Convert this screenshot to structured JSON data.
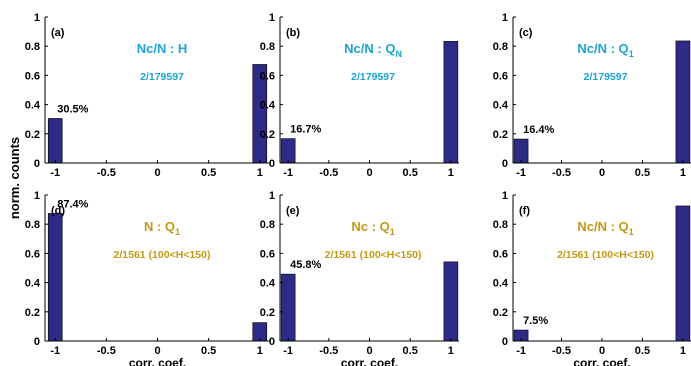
{
  "figure": {
    "ylabel_shared": "norm. counts"
  },
  "colors": {
    "bar": "#2e2b88",
    "axis": "#000000",
    "annot_cyan": "#1aa4d9",
    "annot_gold": "#c49a12"
  },
  "chart_data": [
    {
      "type": "bar",
      "panel": "(a)",
      "title": "Nc/N : H",
      "subtitle": "2/179597",
      "annotation_color": "cyan",
      "x": [
        -1,
        1
      ],
      "values": [
        0.305,
        0.675
      ],
      "bar_label": "30.5%",
      "xlim": [
        -1.1,
        1.1
      ],
      "ylim": [
        0,
        1
      ],
      "xticks": [
        "-1",
        "-0.5",
        "0",
        "0.5",
        "1"
      ],
      "yticks": [
        "0",
        "0.2",
        "0.4",
        "0.6",
        "0.8",
        "1"
      ],
      "xlabel": "",
      "ylabel": ""
    },
    {
      "type": "bar",
      "panel": "(b)",
      "title": "Nc/N : Q",
      "title_sub": "N",
      "subtitle": "2/179597",
      "annotation_color": "cyan",
      "x": [
        -1,
        1
      ],
      "values": [
        0.167,
        0.833
      ],
      "bar_label": "16.7%",
      "xlim": [
        -1.1,
        1.1
      ],
      "ylim": [
        0,
        1
      ],
      "xticks": [
        "-1",
        "-0.5",
        "0",
        "0.5",
        "1"
      ],
      "yticks": [
        "0",
        "0.2",
        "0.4",
        "0.6",
        "0.8",
        "1"
      ],
      "xlabel": "",
      "ylabel": ""
    },
    {
      "type": "bar",
      "panel": "(c)",
      "title": "Nc/N : Q",
      "title_sub": "1",
      "subtitle": "2/179597",
      "annotation_color": "cyan",
      "x": [
        -1,
        1
      ],
      "values": [
        0.164,
        0.836
      ],
      "bar_label": "16.4%",
      "xlim": [
        -1.1,
        1.1
      ],
      "ylim": [
        0,
        1
      ],
      "xticks": [
        "-1",
        "-0.5",
        "0",
        "0.5",
        "1"
      ],
      "yticks": [
        "0",
        "0.2",
        "0.4",
        "0.6",
        "0.8",
        "1"
      ],
      "xlabel": "",
      "ylabel": ""
    },
    {
      "type": "bar",
      "panel": "(d)",
      "title": "N : Q",
      "title_sub": "1",
      "subtitle": "2/1561 (100<H<150)",
      "annotation_color": "gold",
      "x": [
        -1,
        1
      ],
      "values": [
        0.874,
        0.126
      ],
      "bar_label": "87.4%",
      "xlim": [
        -1.1,
        1.1
      ],
      "ylim": [
        0,
        1
      ],
      "xticks": [
        "-1",
        "-0.5",
        "0",
        "0.5",
        "1"
      ],
      "yticks": [
        "0",
        "0.2",
        "0.4",
        "0.6",
        "0.8",
        "1"
      ],
      "xlabel": "corr. coef.",
      "ylabel": ""
    },
    {
      "type": "bar",
      "panel": "(e)",
      "title": "Nc : Q",
      "title_sub": "1",
      "subtitle": "2/1561 (100<H<150)",
      "annotation_color": "gold",
      "x": [
        -1,
        1
      ],
      "values": [
        0.458,
        0.542
      ],
      "bar_label": "45.8%",
      "xlim": [
        -1.1,
        1.1
      ],
      "ylim": [
        0,
        1
      ],
      "xticks": [
        "-1",
        "-0.5",
        "0",
        "0.5",
        "1"
      ],
      "yticks": [
        "0",
        "0.2",
        "0.4",
        "0.6",
        "0.8",
        "1"
      ],
      "xlabel": "corr. coef.",
      "ylabel": ""
    },
    {
      "type": "bar",
      "panel": "(f)",
      "title": "Nc/N : Q",
      "title_sub": "1",
      "subtitle": "2/1561 (100<H<150)",
      "annotation_color": "gold",
      "x": [
        -1,
        1
      ],
      "values": [
        0.075,
        0.925
      ],
      "bar_label": "7.5%",
      "xlim": [
        -1.1,
        1.1
      ],
      "ylim": [
        0,
        1
      ],
      "xticks": [
        "-1",
        "-0.5",
        "0",
        "0.5",
        "1"
      ],
      "yticks": [
        "0",
        "0.2",
        "0.4",
        "0.6",
        "0.8",
        "1"
      ],
      "xlabel": "corr. coef.",
      "ylabel": ""
    }
  ]
}
